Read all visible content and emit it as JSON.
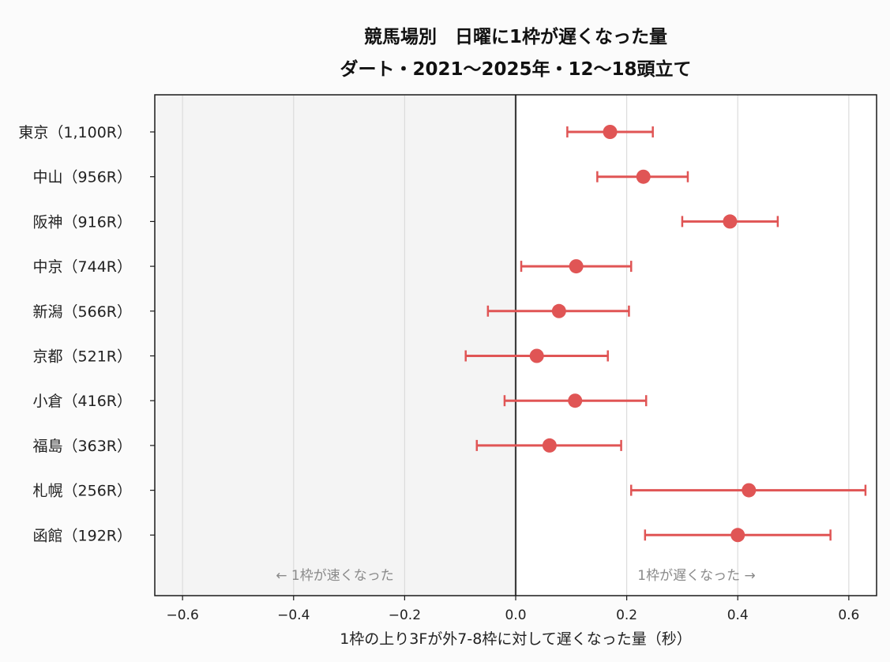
{
  "chart_data": {
    "type": "scatter",
    "title": "競馬場別　日曜に1枠が遅くなった量",
    "subtitle": "ダート・2021〜2025年・12〜18頭立て",
    "xlabel": "1枠の上り3Fが外7-8枠に対して遅くなった量（秒）",
    "ylabel": "",
    "xlim": [
      -0.65,
      0.65
    ],
    "xticks": [
      -0.6,
      -0.4,
      -0.2,
      0.0,
      0.2,
      0.4,
      0.6
    ],
    "xtick_labels": [
      "−0.6",
      "−0.4",
      "−0.2",
      "0.0",
      "0.2",
      "0.4",
      "0.6"
    ],
    "grid": "vertical",
    "categories": [
      "東京（1,100R）",
      "中山（956R）",
      "阪神（916R）",
      "中京（744R）",
      "新潟（566R）",
      "京都（521R）",
      "小倉（416R）",
      "福島（363R）",
      "札幌（256R）",
      "函館（192R）"
    ],
    "values": [
      0.17,
      0.23,
      0.386,
      0.109,
      0.078,
      0.038,
      0.107,
      0.061,
      0.42,
      0.4
    ],
    "ci_low": [
      0.093,
      0.147,
      0.3,
      0.01,
      -0.05,
      -0.09,
      -0.02,
      -0.07,
      0.208,
      0.233
    ],
    "ci_high": [
      0.247,
      0.31,
      0.472,
      0.208,
      0.204,
      0.166,
      0.235,
      0.19,
      0.63,
      0.567
    ],
    "annotations": {
      "left": "← 1枠が速くなった",
      "right": "1枠が遅くなった →"
    },
    "colors": {
      "point": "#e05555",
      "zero_line": "#3d3d3d",
      "shade": "#f4f4f4"
    }
  }
}
